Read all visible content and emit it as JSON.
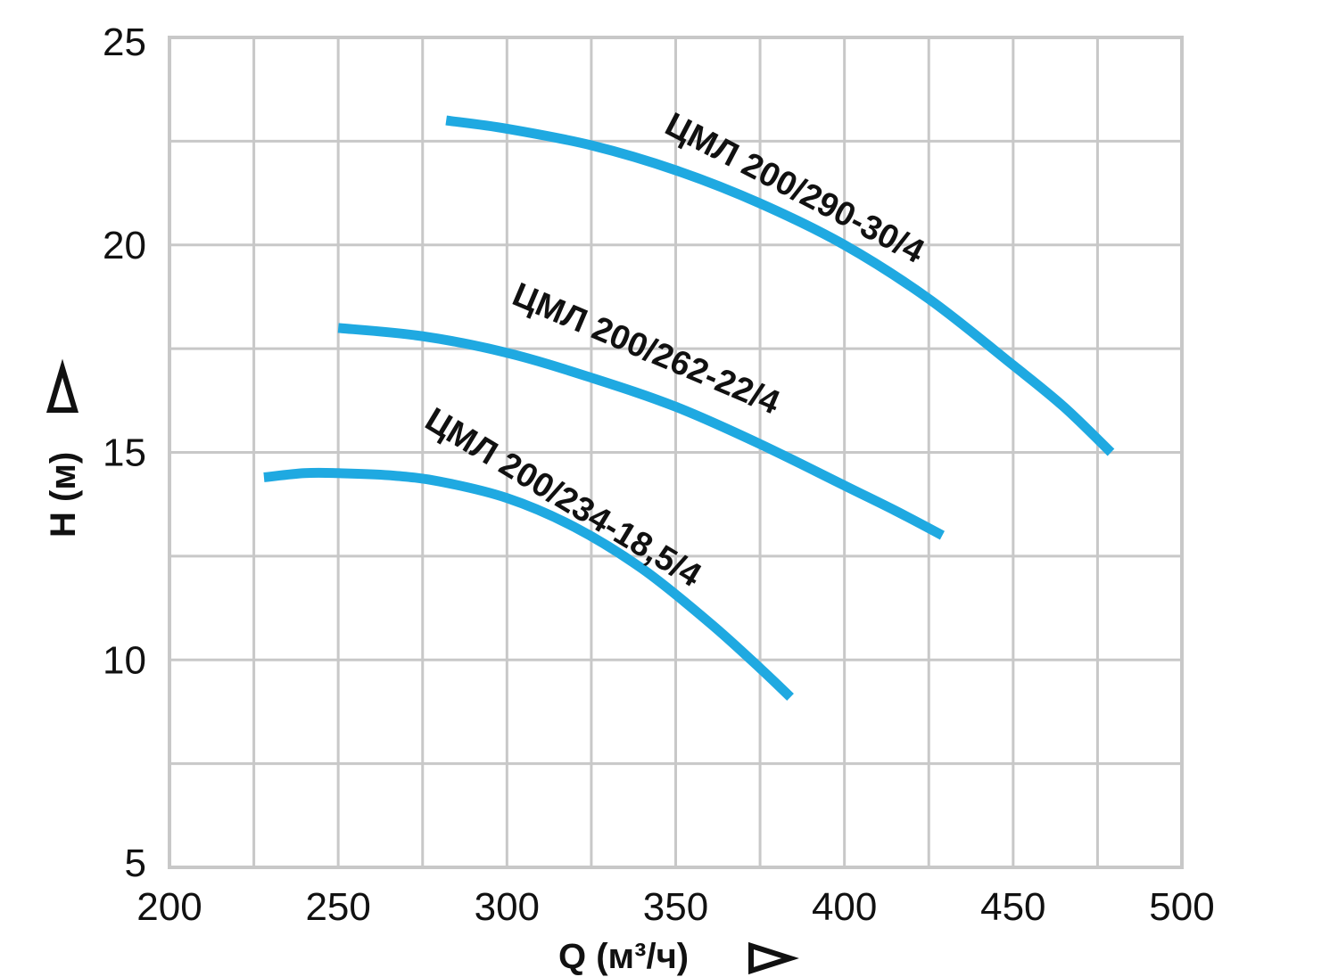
{
  "chart_data": {
    "type": "line",
    "xlabel": "Q (м³/ч)",
    "ylabel": "H (м)",
    "xlim": [
      200,
      500
    ],
    "ylim": [
      5,
      25
    ],
    "x_ticks": [
      "200",
      "250",
      "300",
      "350",
      "400",
      "450",
      "500"
    ],
    "y_ticks": [
      "5",
      "10",
      "15",
      "20",
      "25"
    ],
    "x_gridlines": [
      200,
      225,
      250,
      275,
      300,
      325,
      350,
      375,
      400,
      425,
      450,
      475,
      500
    ],
    "y_gridlines": [
      5,
      7.5,
      10,
      12.5,
      15,
      17.5,
      20,
      22.5,
      25
    ],
    "grid": true,
    "legend": "none",
    "series_color": "#1fa9e1",
    "series": [
      {
        "name": "ЦМЛ 200/290-30/4",
        "x": [
          282,
          300,
          325,
          350,
          375,
          400,
          425,
          450,
          465,
          479
        ],
        "y": [
          23.0,
          22.8,
          22.4,
          21.8,
          21.0,
          20.0,
          18.7,
          17.1,
          16.1,
          15.0
        ]
      },
      {
        "name": "ЦМЛ 200/262-22/4",
        "x": [
          250,
          275,
          300,
          325,
          350,
          375,
          400,
          415,
          429
        ],
        "y": [
          18.0,
          17.8,
          17.4,
          16.8,
          16.1,
          15.2,
          14.2,
          13.6,
          13.0
        ]
      },
      {
        "name": "ЦМЛ 200/234-18,5/4",
        "x": [
          228,
          240,
          250,
          265,
          280,
          300,
          320,
          340,
          360,
          375,
          384
        ],
        "y": [
          14.4,
          14.5,
          14.5,
          14.45,
          14.3,
          13.9,
          13.2,
          12.2,
          10.9,
          9.8,
          9.1
        ]
      }
    ]
  }
}
